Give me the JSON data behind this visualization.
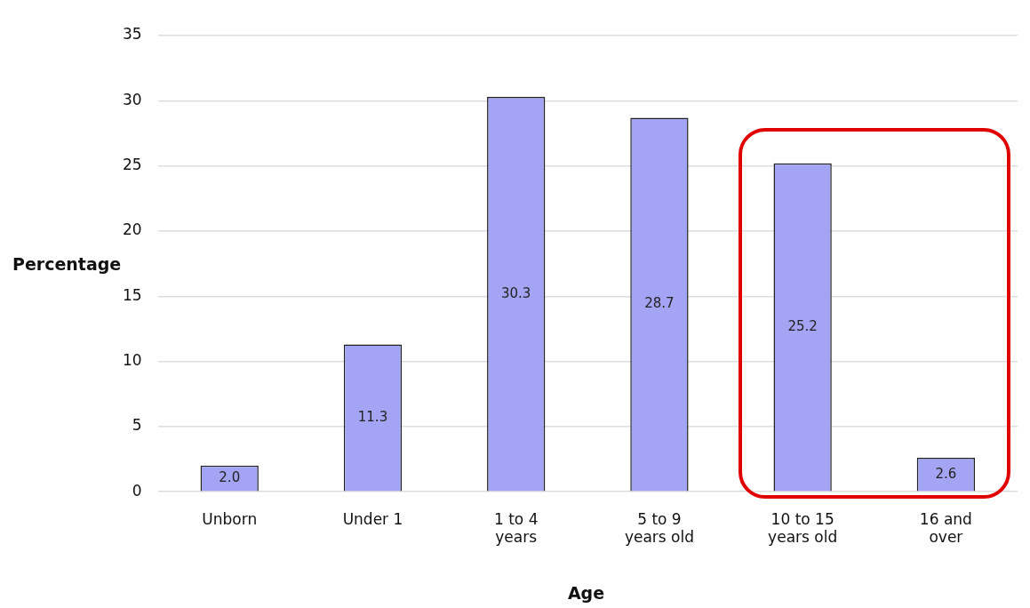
{
  "chart_data": {
    "type": "bar",
    "xlabel": "Age",
    "ylabel": "Percentage",
    "categories": [
      "Unborn",
      "Under 1",
      "1 to 4 years",
      "5 to 9 years old",
      "10 to 15 years old",
      "16 and over"
    ],
    "values": [
      2.0,
      11.3,
      30.3,
      28.7,
      25.2,
      2.6
    ],
    "value_labels": [
      "2.0",
      "11.3",
      "30.3",
      "28.7",
      "25.2",
      "2.6"
    ],
    "color": "#a4a4f4",
    "ylim": [
      0,
      35
    ],
    "yticks": [
      0,
      5,
      10,
      15,
      20,
      25,
      30,
      35
    ],
    "grid": "y",
    "data_labels": true
  }
}
